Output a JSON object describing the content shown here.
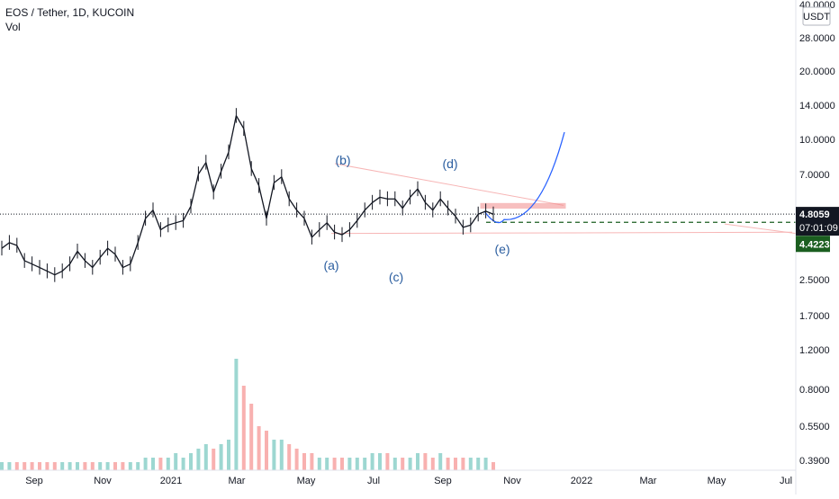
{
  "header": {
    "symbol_line": "EOS / Tether, 1D, KUCOIN",
    "indicator": "Vol"
  },
  "colors": {
    "up": "#131722",
    "down": "#131722",
    "volume_up": "#26a69a",
    "volume_down": "#ef5350",
    "projection": "#2962ff",
    "triangle": "#f7b6b6",
    "target_box": "#f28b8b",
    "support": "#1b5e20",
    "axis_text": "#131722"
  },
  "chart_data": {
    "type": "line",
    "title": "EOS / Tether, 1D, KUCOIN",
    "yscale": "log",
    "ylim": [
      2.0,
      40.0
    ],
    "price_axis": {
      "currency_label": "USDT",
      "ticks": [
        "40.0000",
        "28.0000",
        "20.0000",
        "14.0000",
        "10.0000",
        "7.0000",
        "4.8059",
        "07:01:09",
        "4.4223",
        "2.5000",
        "1.7000",
        "1.2000",
        "0.8000",
        "0.5500",
        "0.3900"
      ]
    },
    "x_ticks": [
      "Sep",
      "Nov",
      "2021",
      "Mar",
      "May",
      "Jul",
      "Sep",
      "Nov",
      "2022",
      "Mar",
      "May",
      "Jul"
    ],
    "last_price": "4.8059",
    "countdown": "07:01:09",
    "support_level": "4.4223",
    "series": [
      {
        "values": [
          3.4,
          3.6,
          3.5,
          3.0,
          2.9,
          2.8,
          2.7,
          2.6,
          2.7,
          2.9,
          3.3,
          3.0,
          2.8,
          3.1,
          3.4,
          3.2,
          2.8,
          2.9,
          3.6,
          4.6,
          5.0,
          4.1,
          4.3,
          4.4,
          4.5,
          5.2,
          7.2,
          8.1,
          6.0,
          7.4,
          9.0,
          13.0,
          11.4,
          7.6,
          6.4,
          4.6,
          6.6,
          7.0,
          5.6,
          5.0,
          4.6,
          3.8,
          4.1,
          4.4,
          4.0,
          3.9,
          4.1,
          4.5,
          5.0,
          5.4,
          5.7,
          5.6,
          5.6,
          5.1,
          5.7,
          6.2,
          5.4,
          5.0,
          5.6,
          5.1,
          4.7,
          4.2,
          4.3,
          4.8,
          4.95,
          4.8
        ]
      }
    ],
    "volume": [
      1,
      1,
      1,
      1,
      1,
      1,
      1,
      1,
      1,
      1,
      1,
      1,
      1,
      1,
      1,
      1,
      1,
      1,
      1,
      2,
      2,
      2,
      2,
      3,
      2,
      3,
      4,
      5,
      4,
      5,
      6,
      24,
      18,
      14,
      9,
      8,
      6,
      6,
      5,
      4,
      3,
      3,
      2,
      2,
      2,
      2,
      2,
      2,
      2,
      3,
      3,
      3,
      2,
      2,
      2,
      3,
      3,
      2,
      3,
      2,
      2,
      2,
      2,
      2,
      2,
      1
    ],
    "annotations": [
      {
        "label": "(a)",
        "price": 3.0
      },
      {
        "label": "(b)",
        "price": 8.0
      },
      {
        "label": "(c)",
        "price": 2.55
      },
      {
        "label": "(d)",
        "price": 7.6
      },
      {
        "label": "(e)",
        "price": 3.85
      }
    ],
    "projection_target": 11.0
  }
}
